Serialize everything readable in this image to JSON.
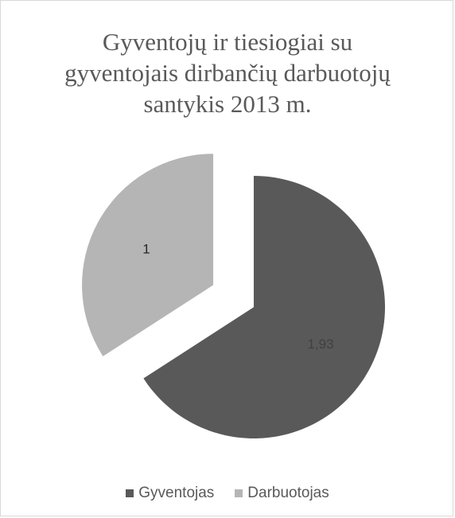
{
  "chart_data": {
    "type": "pie",
    "title_lines": [
      "Gyventojų ir tiesiogiai su",
      "gyventojais dirbančių darbuotojų",
      "santykis 2013 m."
    ],
    "slices": [
      {
        "name": "Gyventojas",
        "value": 1.93,
        "label": "1,93",
        "color": "#595959",
        "label_color": "#404040"
      },
      {
        "name": "Darbuotojas",
        "value": 1,
        "label": "1",
        "color": "#b5b5b5",
        "label_color": "#262626"
      }
    ],
    "exploded": true,
    "legend_position": "bottom"
  }
}
